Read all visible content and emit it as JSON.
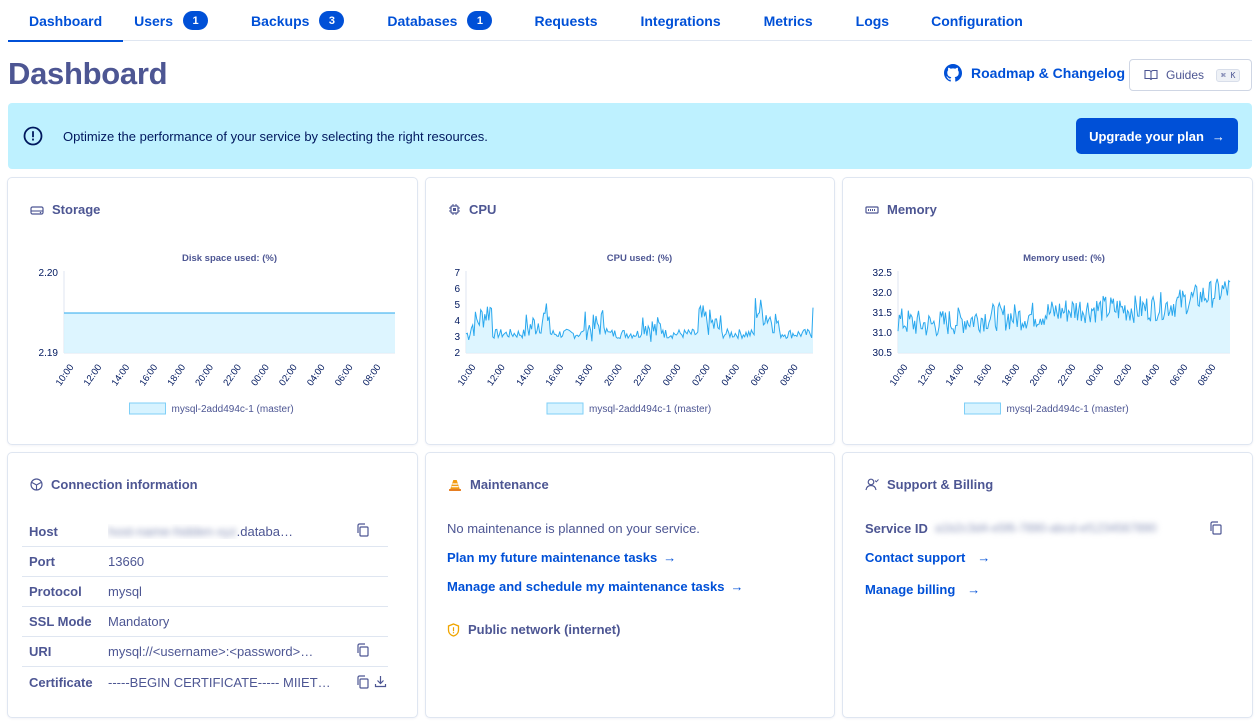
{
  "tabs": [
    {
      "label": "Dashboard",
      "badge": "",
      "active": true
    },
    {
      "label": "Users",
      "badge": "1"
    },
    {
      "label": "Backups",
      "badge": "3"
    },
    {
      "label": "Databases",
      "badge": "1"
    },
    {
      "label": "Requests",
      "badge": ""
    },
    {
      "label": "Integrations",
      "badge": ""
    },
    {
      "label": "Metrics",
      "badge": ""
    },
    {
      "label": "Logs",
      "badge": ""
    },
    {
      "label": "Configuration",
      "badge": ""
    }
  ],
  "header": {
    "title": "Dashboard",
    "roadmap_label": "Roadmap & Changelog",
    "guides_label": "Guides",
    "guides_shortcut": "⌘ K"
  },
  "banner": {
    "text": "Optimize the performance of your service by selecting the right resources.",
    "button_label": "Upgrade your plan",
    "icon": "info-circle-icon"
  },
  "cards": {
    "storage": {
      "title": "Storage",
      "icon": "hard-drive-icon"
    },
    "cpu": {
      "title": "CPU",
      "icon": "chip-icon"
    },
    "memory": {
      "title": "Memory",
      "icon": "memory-icon"
    }
  },
  "chart_data": [
    {
      "type": "area",
      "title": "Disk space used: (%)",
      "x": [
        "10:00",
        "12:00",
        "14:00",
        "16:00",
        "18:00",
        "20:00",
        "22:00",
        "00:00",
        "02:00",
        "04:00",
        "06:00",
        "08:00"
      ],
      "series": [
        {
          "name": "mysql-2add494c-1 (master)",
          "values": [
            2.195,
            2.195,
            2.195,
            2.195,
            2.195,
            2.195,
            2.195,
            2.195,
            2.195,
            2.195,
            2.195,
            2.195
          ]
        }
      ],
      "ylim": [
        2.19,
        2.2
      ],
      "yticks": [
        "2.20",
        "2.19"
      ],
      "legend": "bottom"
    },
    {
      "type": "area",
      "title": "CPU used: (%)",
      "x": [
        "10:00",
        "12:00",
        "14:00",
        "16:00",
        "18:00",
        "20:00",
        "22:00",
        "00:00",
        "02:00",
        "04:00",
        "06:00",
        "08:00"
      ],
      "series": [
        {
          "name": "mysql-2add494c-1 (master)",
          "values": [
            3.0,
            4.8,
            3.2,
            4.5,
            3.1,
            4.6,
            3.0,
            4.3,
            3.2,
            4.7,
            3.4,
            5.0
          ]
        }
      ],
      "ylim": [
        2,
        7
      ],
      "yticks": [
        "7",
        "6",
        "5",
        "4",
        "3",
        "2"
      ],
      "legend": "bottom"
    },
    {
      "type": "area",
      "title": "Memory used: (%)",
      "x": [
        "10:00",
        "12:00",
        "14:00",
        "16:00",
        "18:00",
        "20:00",
        "22:00",
        "00:00",
        "02:00",
        "04:00",
        "06:00",
        "08:00"
      ],
      "series": [
        {
          "name": "mysql-2add494c-1 (master)",
          "values": [
            31.3,
            31.2,
            31.3,
            31.4,
            31.4,
            31.5,
            31.6,
            31.6,
            31.6,
            31.7,
            31.9,
            32.1
          ]
        }
      ],
      "ylim": [
        30.5,
        32.5
      ],
      "yticks": [
        "32.5",
        "32.0",
        "31.5",
        "31.0",
        "30.5"
      ],
      "legend": "bottom"
    }
  ],
  "connection": {
    "title": "Connection information",
    "icon": "network-icon",
    "rows": [
      {
        "label": "Host",
        "value_blur": "host-name-hidden-xyz",
        "value": ".databa…"
      },
      {
        "label": "Port",
        "value": "13660"
      },
      {
        "label": "Protocol",
        "value": "mysql"
      },
      {
        "label": "SSL Mode",
        "value": "Mandatory"
      },
      {
        "label": "URI",
        "value": "mysql://<username>:<password>…"
      },
      {
        "label": "Certificate",
        "value": "-----BEGIN CERTIFICATE----- MIIETT…"
      }
    ]
  },
  "maintenance": {
    "title": "Maintenance",
    "icon": "traffic-cone-icon",
    "text": "No maintenance is planned on your service.",
    "link1": "Plan my future maintenance tasks",
    "link2": "Manage and schedule my maintenance tasks",
    "network_title": "Public network (internet)",
    "network_icon": "shield-icon"
  },
  "support": {
    "title": "Support & Billing",
    "icon": "user-icon",
    "service_id_label": "Service ID",
    "service_id_value": "a1b2c3d4-e5f6-7890-abcd-ef1234567890",
    "contact_label": "Contact support",
    "billing_label": "Manage billing"
  }
}
